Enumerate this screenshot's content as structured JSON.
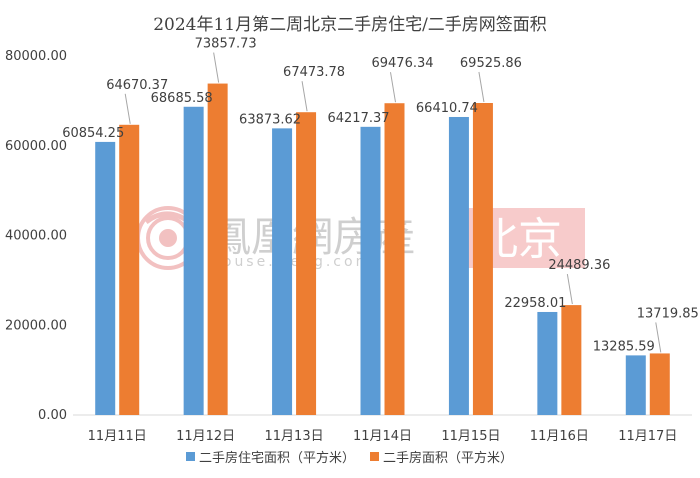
{
  "chart_data": {
    "type": "bar",
    "title": "2024年11月第二周北京二手房住宅/二手房网签面积",
    "categories": [
      "11月11日",
      "11月12日",
      "11月13日",
      "11月14日",
      "11月15日",
      "11月16日",
      "11月17日"
    ],
    "series": [
      {
        "name": "二手房住宅面积（平方米）",
        "color": "#5b9bd5",
        "values": [
          60854.25,
          68685.58,
          63873.62,
          64217.37,
          66410.74,
          22958.01,
          13285.59
        ],
        "labels": [
          "60854.25",
          "68685.58",
          "63873.62",
          "64217.37",
          "66410.74",
          "22958.01",
          "13285.59"
        ]
      },
      {
        "name": "二手房面积（平方米）",
        "color": "#ed7d31",
        "values": [
          64670.37,
          73857.73,
          67473.78,
          69476.34,
          69525.86,
          24489.36,
          13719.85
        ],
        "labels": [
          "64670.37",
          "73857.73",
          "67473.78",
          "69476.34",
          "69525.86",
          "24489.36",
          "13719.85"
        ]
      }
    ],
    "ylim": [
      0,
      80000
    ],
    "yticks": [
      "0.00",
      "20000.00",
      "40000.00",
      "60000.00",
      "80000.00"
    ],
    "ytick_values": [
      0,
      20000,
      40000,
      60000,
      80000
    ],
    "grid": false,
    "legend": "bottom"
  },
  "watermark": {
    "brand": "鳳凰網房產",
    "site": "house.ifeng.com",
    "city": "北京",
    "brand_color": "#b0b0b0",
    "city_bg": "#f2a1a1"
  }
}
